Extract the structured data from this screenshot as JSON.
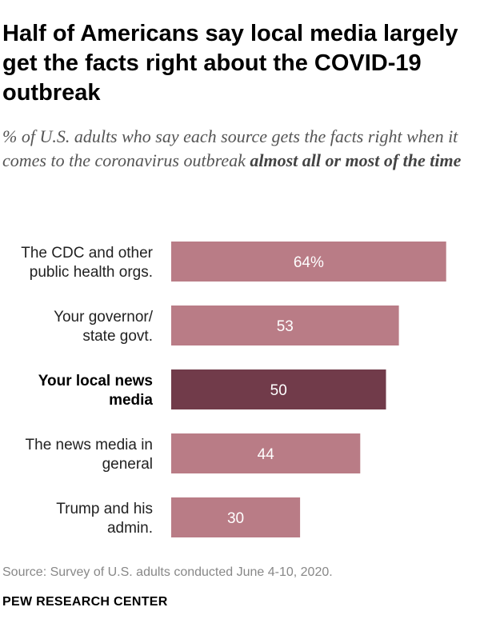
{
  "header": {
    "title": "Half of Americans say local media largely get the facts right about the COVID-19 outbreak",
    "subtitle_plain": "% of U.S. adults who say each source gets the facts right when it comes to the coronavirus outbreak",
    "subtitle_emphasis": "almost all or most of the time"
  },
  "footer": {
    "source": "Source: Survey of U.S. adults conducted June 4-10, 2020.",
    "brand": "PEW RESEARCH CENTER"
  },
  "colors": {
    "bar": "#b97c86",
    "bar_highlight": "#713b4a"
  },
  "chart_data": {
    "type": "bar",
    "orientation": "horizontal",
    "categories": [
      [
        "The CDC and other",
        "public health orgs."
      ],
      [
        "Your governor/",
        "state govt."
      ],
      [
        "Your local news",
        "media"
      ],
      [
        "The news media in",
        "general"
      ],
      [
        "Trump and his",
        "admin."
      ]
    ],
    "values": [
      64,
      53,
      50,
      44,
      30
    ],
    "value_labels": [
      "64%",
      "53",
      "50",
      "44",
      "30"
    ],
    "highlight_index": 2,
    "xlim": [
      0,
      100
    ]
  }
}
